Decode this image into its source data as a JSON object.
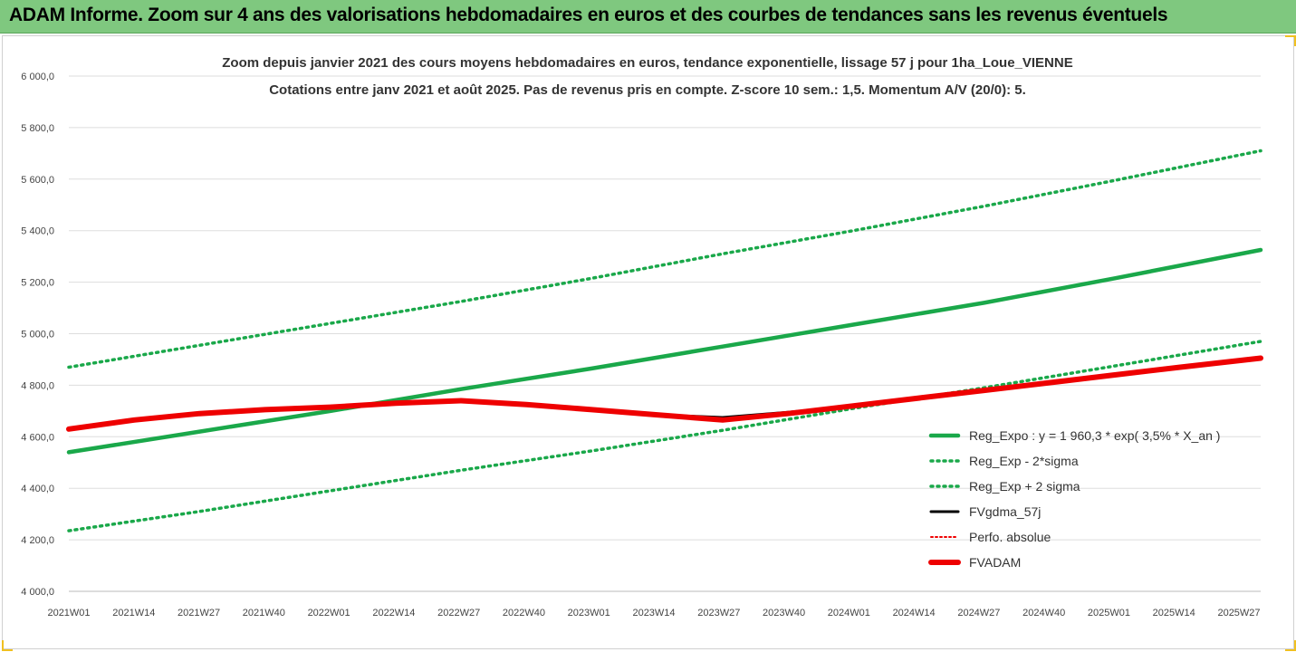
{
  "header": {
    "title": "ADAM Informe. Zoom sur 4 ans des valorisations hebdomadaires en euros et des courbes de tendances sans les revenus éventuels"
  },
  "colors": {
    "header_bg": "#7fc87f",
    "green": "#1aa84a",
    "red": "#ee0000",
    "black": "#000000",
    "grid": "#dddddd"
  },
  "chart_data": {
    "type": "line",
    "title_line1": "Zoom depuis janvier 2021 des cours moyens hebdomadaires en euros, tendance exponentielle, lissage 57 j pour 1ha_Loue_VIENNE",
    "title_line2": "Cotations entre janv 2021 et août 2025.  Pas de revenus pris en compte. Z-score 10 sem.: 1,5. Momentum A/V (20/0): 5.",
    "ylim": [
      4000,
      6000
    ],
    "y_ticks": [
      "4 000,0",
      "4 200,0",
      "4 400,0",
      "4 600,0",
      "4 800,0",
      "5 000,0",
      "5 200,0",
      "5 400,0",
      "5 600,0",
      "5 800,0",
      "6 000,0"
    ],
    "x_tick_labels": [
      "2021W01",
      "2021W14",
      "2021W27",
      "2021W40",
      "2022W01",
      "2022W14",
      "2022W27",
      "2022W40",
      "2023W01",
      "2023W14",
      "2023W27",
      "2023W40",
      "2024W01",
      "2024W14",
      "2024W27",
      "2024W40",
      "2025W01",
      "2025W14",
      "2025W27"
    ],
    "x_range_weeks": [
      0,
      237
    ],
    "grid": "horizontal",
    "legend_position": "bottom-right",
    "series": [
      {
        "name": "Reg_Expo : y = 1 960,3 * exp( 3,5% *  X_an )",
        "style": "solid-thick",
        "color": "#1aa84a",
        "x": [
          0,
          26,
          52,
          78,
          104,
          130,
          156,
          182,
          208,
          237
        ],
        "y": [
          4540,
          4620,
          4700,
          4785,
          4865,
          4950,
          5035,
          5120,
          5215,
          5325
        ]
      },
      {
        "name": "Reg_Exp - 2*sigma",
        "style": "dotted",
        "color": "#1aa84a",
        "x": [
          0,
          26,
          52,
          78,
          104,
          130,
          156,
          182,
          208,
          237
        ],
        "y": [
          4235,
          4310,
          4390,
          4470,
          4545,
          4625,
          4710,
          4790,
          4875,
          4970
        ]
      },
      {
        "name": "Reg_Exp + 2 sigma",
        "style": "dotted",
        "color": "#1aa84a",
        "x": [
          0,
          26,
          52,
          78,
          104,
          130,
          156,
          182,
          208,
          237
        ],
        "y": [
          4870,
          4955,
          5040,
          5125,
          5215,
          5310,
          5400,
          5495,
          5595,
          5710
        ]
      },
      {
        "name": "FVgdma_57j",
        "style": "solid",
        "color": "#000000",
        "x": [
          0,
          13,
          26,
          39,
          52,
          65,
          78,
          91,
          104,
          117,
          130,
          143,
          156,
          169,
          182,
          195,
          208,
          221,
          237
        ],
        "y": [
          4630,
          4665,
          4690,
          4705,
          4715,
          4730,
          4740,
          4725,
          4705,
          4685,
          4675,
          4695,
          4720,
          4750,
          4780,
          4810,
          4840,
          4870,
          4905
        ]
      },
      {
        "name": "Perfo. absolue",
        "style": "dotted-thin",
        "color": "#ee0000",
        "x": [
          0,
          13,
          26,
          39,
          52,
          65,
          78,
          91,
          104,
          117,
          130,
          143,
          156,
          169,
          182,
          195,
          208,
          221,
          237
        ],
        "y": [
          4630,
          4665,
          4690,
          4705,
          4715,
          4730,
          4740,
          4725,
          4705,
          4685,
          4665,
          4690,
          4720,
          4750,
          4780,
          4810,
          4840,
          4870,
          4905
        ]
      },
      {
        "name": "FVADAM",
        "style": "solid-thick",
        "color": "#ee0000",
        "x": [
          0,
          13,
          26,
          39,
          52,
          65,
          78,
          91,
          104,
          117,
          130,
          143,
          156,
          169,
          182,
          195,
          208,
          221,
          237
        ],
        "y": [
          4630,
          4665,
          4690,
          4705,
          4715,
          4730,
          4740,
          4725,
          4705,
          4685,
          4665,
          4690,
          4720,
          4750,
          4780,
          4810,
          4840,
          4870,
          4905
        ]
      }
    ]
  }
}
